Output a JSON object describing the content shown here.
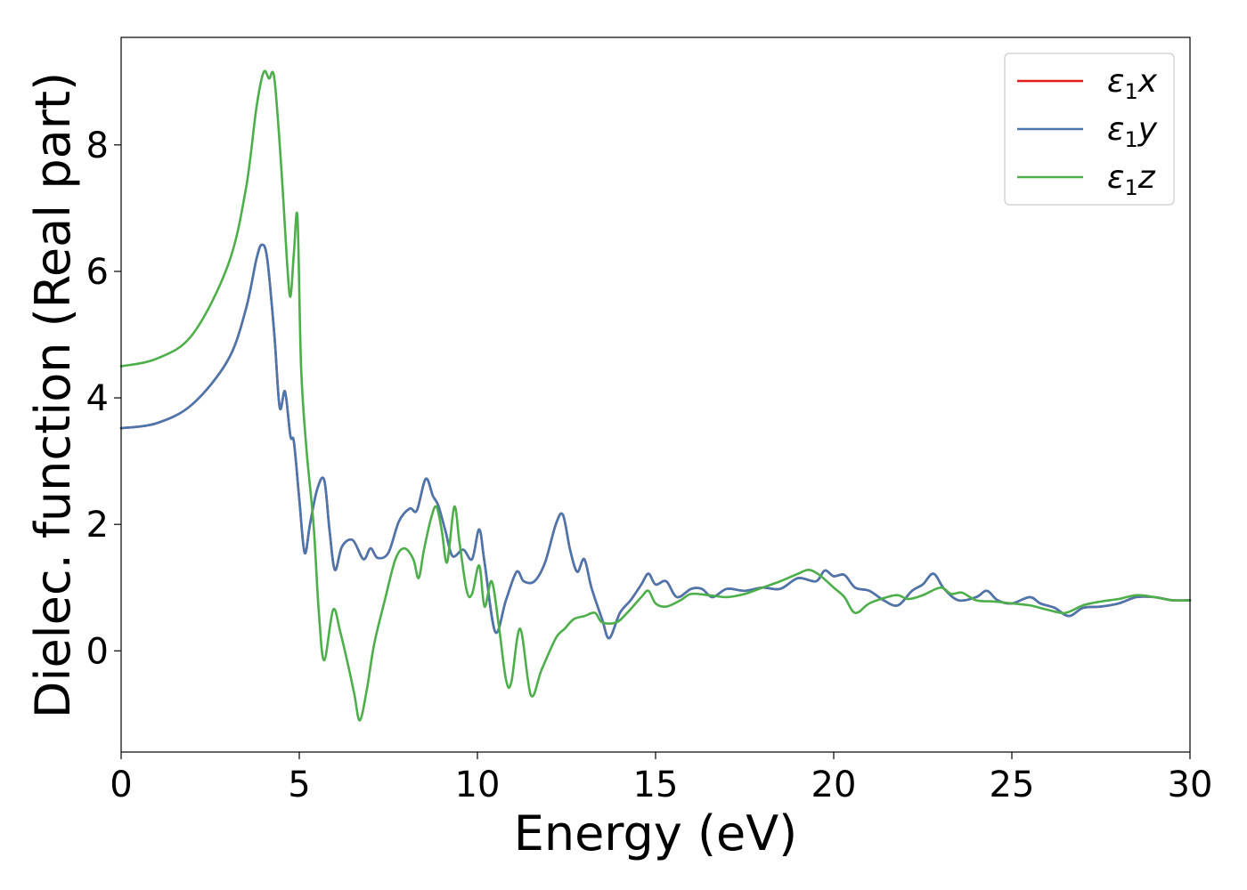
{
  "chart_data": {
    "type": "line",
    "xlabel": "Energy (eV)",
    "ylabel": "Dielec. function (Real part)",
    "xlim": [
      0,
      30
    ],
    "ylim": [
      -1.6,
      9.7
    ],
    "xticks": [
      0,
      5,
      10,
      15,
      20,
      25,
      30
    ],
    "yticks": [
      0,
      2,
      4,
      6,
      8
    ],
    "grid": false,
    "legend_position": "top-right",
    "series": [
      {
        "name": "ε1x",
        "legend": {
          "symbol": "ε",
          "sub": "1",
          "var": "x"
        },
        "color": "#e41a1c",
        "points": [
          [
            0,
            3.52
          ],
          [
            1,
            3.6
          ],
          [
            2,
            3.9
          ],
          [
            3,
            4.6
          ],
          [
            3.5,
            5.4
          ],
          [
            3.8,
            6.2
          ],
          [
            3.95,
            6.42
          ],
          [
            4.1,
            6.2
          ],
          [
            4.3,
            5.0
          ],
          [
            4.45,
            3.85
          ],
          [
            4.6,
            4.1
          ],
          [
            4.75,
            3.4
          ],
          [
            4.85,
            3.3
          ],
          [
            5.0,
            2.4
          ],
          [
            5.15,
            1.55
          ],
          [
            5.3,
            2.0
          ],
          [
            5.5,
            2.55
          ],
          [
            5.7,
            2.7
          ],
          [
            5.85,
            1.9
          ],
          [
            6.0,
            1.28
          ],
          [
            6.2,
            1.65
          ],
          [
            6.5,
            1.75
          ],
          [
            6.8,
            1.45
          ],
          [
            7.0,
            1.62
          ],
          [
            7.2,
            1.47
          ],
          [
            7.5,
            1.55
          ],
          [
            7.8,
            2.05
          ],
          [
            8.1,
            2.25
          ],
          [
            8.3,
            2.22
          ],
          [
            8.55,
            2.72
          ],
          [
            8.75,
            2.45
          ],
          [
            8.9,
            2.3
          ],
          [
            9.1,
            1.9
          ],
          [
            9.3,
            1.5
          ],
          [
            9.6,
            1.6
          ],
          [
            9.85,
            1.45
          ],
          [
            10.05,
            1.92
          ],
          [
            10.2,
            1.4
          ],
          [
            10.5,
            0.3
          ],
          [
            10.8,
            0.8
          ],
          [
            11.1,
            1.25
          ],
          [
            11.3,
            1.1
          ],
          [
            11.6,
            1.1
          ],
          [
            11.9,
            1.4
          ],
          [
            12.2,
            2.0
          ],
          [
            12.4,
            2.15
          ],
          [
            12.6,
            1.6
          ],
          [
            12.8,
            1.25
          ],
          [
            13.0,
            1.45
          ],
          [
            13.2,
            1.0
          ],
          [
            13.5,
            0.5
          ],
          [
            13.7,
            0.2
          ],
          [
            14.0,
            0.6
          ],
          [
            14.3,
            0.8
          ],
          [
            14.6,
            1.05
          ],
          [
            14.8,
            1.22
          ],
          [
            15.0,
            1.05
          ],
          [
            15.3,
            1.1
          ],
          [
            15.6,
            0.85
          ],
          [
            16.0,
            0.98
          ],
          [
            16.3,
            0.98
          ],
          [
            16.6,
            0.85
          ],
          [
            17.0,
            0.98
          ],
          [
            17.5,
            0.95
          ],
          [
            18.0,
            1.0
          ],
          [
            18.5,
            0.98
          ],
          [
            19.0,
            1.15
          ],
          [
            19.5,
            1.1
          ],
          [
            19.75,
            1.27
          ],
          [
            20.0,
            1.18
          ],
          [
            20.3,
            1.2
          ],
          [
            20.6,
            1.0
          ],
          [
            21.0,
            0.95
          ],
          [
            21.4,
            0.8
          ],
          [
            21.8,
            0.72
          ],
          [
            22.2,
            0.95
          ],
          [
            22.5,
            1.05
          ],
          [
            22.8,
            1.22
          ],
          [
            23.1,
            0.98
          ],
          [
            23.5,
            0.8
          ],
          [
            24.0,
            0.85
          ],
          [
            24.3,
            0.95
          ],
          [
            24.6,
            0.8
          ],
          [
            25.0,
            0.75
          ],
          [
            25.5,
            0.85
          ],
          [
            25.8,
            0.75
          ],
          [
            26.2,
            0.68
          ],
          [
            26.6,
            0.55
          ],
          [
            27.0,
            0.68
          ],
          [
            27.5,
            0.7
          ],
          [
            28.0,
            0.75
          ],
          [
            28.5,
            0.85
          ],
          [
            29.0,
            0.85
          ],
          [
            29.5,
            0.8
          ],
          [
            30.0,
            0.8
          ]
        ]
      },
      {
        "name": "ε1y",
        "legend": {
          "symbol": "ε",
          "sub": "1",
          "var": "y"
        },
        "color": "#4a76ae",
        "points": [
          [
            0,
            3.52
          ],
          [
            1,
            3.6
          ],
          [
            2,
            3.9
          ],
          [
            3,
            4.6
          ],
          [
            3.5,
            5.4
          ],
          [
            3.8,
            6.2
          ],
          [
            3.95,
            6.42
          ],
          [
            4.1,
            6.2
          ],
          [
            4.3,
            5.0
          ],
          [
            4.45,
            3.85
          ],
          [
            4.6,
            4.1
          ],
          [
            4.75,
            3.4
          ],
          [
            4.85,
            3.3
          ],
          [
            5.0,
            2.4
          ],
          [
            5.15,
            1.55
          ],
          [
            5.3,
            2.0
          ],
          [
            5.5,
            2.55
          ],
          [
            5.7,
            2.7
          ],
          [
            5.85,
            1.9
          ],
          [
            6.0,
            1.28
          ],
          [
            6.2,
            1.65
          ],
          [
            6.5,
            1.75
          ],
          [
            6.8,
            1.45
          ],
          [
            7.0,
            1.62
          ],
          [
            7.2,
            1.47
          ],
          [
            7.5,
            1.55
          ],
          [
            7.8,
            2.05
          ],
          [
            8.1,
            2.25
          ],
          [
            8.3,
            2.22
          ],
          [
            8.55,
            2.72
          ],
          [
            8.75,
            2.45
          ],
          [
            8.9,
            2.3
          ],
          [
            9.1,
            1.9
          ],
          [
            9.3,
            1.5
          ],
          [
            9.6,
            1.6
          ],
          [
            9.85,
            1.45
          ],
          [
            10.05,
            1.92
          ],
          [
            10.2,
            1.4
          ],
          [
            10.5,
            0.3
          ],
          [
            10.8,
            0.8
          ],
          [
            11.1,
            1.25
          ],
          [
            11.3,
            1.1
          ],
          [
            11.6,
            1.1
          ],
          [
            11.9,
            1.4
          ],
          [
            12.2,
            2.0
          ],
          [
            12.4,
            2.15
          ],
          [
            12.6,
            1.6
          ],
          [
            12.8,
            1.25
          ],
          [
            13.0,
            1.45
          ],
          [
            13.2,
            1.0
          ],
          [
            13.5,
            0.5
          ],
          [
            13.7,
            0.2
          ],
          [
            14.0,
            0.6
          ],
          [
            14.3,
            0.8
          ],
          [
            14.6,
            1.05
          ],
          [
            14.8,
            1.22
          ],
          [
            15.0,
            1.05
          ],
          [
            15.3,
            1.1
          ],
          [
            15.6,
            0.85
          ],
          [
            16.0,
            0.98
          ],
          [
            16.3,
            0.98
          ],
          [
            16.6,
            0.85
          ],
          [
            17.0,
            0.98
          ],
          [
            17.5,
            0.95
          ],
          [
            18.0,
            1.0
          ],
          [
            18.5,
            0.98
          ],
          [
            19.0,
            1.15
          ],
          [
            19.5,
            1.1
          ],
          [
            19.75,
            1.27
          ],
          [
            20.0,
            1.18
          ],
          [
            20.3,
            1.2
          ],
          [
            20.6,
            1.0
          ],
          [
            21.0,
            0.95
          ],
          [
            21.4,
            0.8
          ],
          [
            21.8,
            0.72
          ],
          [
            22.2,
            0.95
          ],
          [
            22.5,
            1.05
          ],
          [
            22.8,
            1.22
          ],
          [
            23.1,
            0.98
          ],
          [
            23.5,
            0.8
          ],
          [
            24.0,
            0.85
          ],
          [
            24.3,
            0.95
          ],
          [
            24.6,
            0.8
          ],
          [
            25.0,
            0.75
          ],
          [
            25.5,
            0.85
          ],
          [
            25.8,
            0.75
          ],
          [
            26.2,
            0.68
          ],
          [
            26.6,
            0.55
          ],
          [
            27.0,
            0.68
          ],
          [
            27.5,
            0.7
          ],
          [
            28.0,
            0.75
          ],
          [
            28.5,
            0.85
          ],
          [
            29.0,
            0.85
          ],
          [
            29.5,
            0.8
          ],
          [
            30.0,
            0.8
          ]
        ]
      },
      {
        "name": "ε1z",
        "legend": {
          "symbol": "ε",
          "sub": "1",
          "var": "z"
        },
        "color": "#4daf4a",
        "points": [
          [
            0,
            4.5
          ],
          [
            1,
            4.62
          ],
          [
            2,
            5.0
          ],
          [
            3,
            6.1
          ],
          [
            3.5,
            7.3
          ],
          [
            3.8,
            8.6
          ],
          [
            4.0,
            9.15
          ],
          [
            4.15,
            9.05
          ],
          [
            4.3,
            9.05
          ],
          [
            4.5,
            7.6
          ],
          [
            4.65,
            6.2
          ],
          [
            4.75,
            5.6
          ],
          [
            4.85,
            6.3
          ],
          [
            4.95,
            6.85
          ],
          [
            5.05,
            4.5
          ],
          [
            5.2,
            3.2
          ],
          [
            5.4,
            2.0
          ],
          [
            5.55,
            0.6
          ],
          [
            5.7,
            -0.15
          ],
          [
            5.95,
            0.65
          ],
          [
            6.15,
            0.3
          ],
          [
            6.4,
            -0.3
          ],
          [
            6.55,
            -0.7
          ],
          [
            6.7,
            -1.1
          ],
          [
            6.9,
            -0.6
          ],
          [
            7.1,
            0.1
          ],
          [
            7.4,
            0.8
          ],
          [
            7.7,
            1.45
          ],
          [
            7.95,
            1.62
          ],
          [
            8.2,
            1.45
          ],
          [
            8.35,
            1.15
          ],
          [
            8.5,
            1.6
          ],
          [
            8.7,
            2.1
          ],
          [
            8.85,
            2.28
          ],
          [
            9.0,
            1.9
          ],
          [
            9.15,
            1.4
          ],
          [
            9.35,
            2.28
          ],
          [
            9.5,
            1.7
          ],
          [
            9.7,
            0.95
          ],
          [
            9.85,
            0.9
          ],
          [
            10.05,
            1.35
          ],
          [
            10.2,
            0.7
          ],
          [
            10.4,
            1.1
          ],
          [
            10.6,
            0.4
          ],
          [
            10.8,
            -0.45
          ],
          [
            10.95,
            -0.5
          ],
          [
            11.2,
            0.35
          ],
          [
            11.5,
            -0.7
          ],
          [
            11.8,
            -0.3
          ],
          [
            12.2,
            0.2
          ],
          [
            12.45,
            0.35
          ],
          [
            12.7,
            0.5
          ],
          [
            13.0,
            0.55
          ],
          [
            13.3,
            0.6
          ],
          [
            13.5,
            0.45
          ],
          [
            13.9,
            0.45
          ],
          [
            14.2,
            0.6
          ],
          [
            14.6,
            0.85
          ],
          [
            14.8,
            0.95
          ],
          [
            15.0,
            0.75
          ],
          [
            15.3,
            0.7
          ],
          [
            15.7,
            0.8
          ],
          [
            16.0,
            0.9
          ],
          [
            16.5,
            0.88
          ],
          [
            17.0,
            0.85
          ],
          [
            17.5,
            0.9
          ],
          [
            18.0,
            1.0
          ],
          [
            18.5,
            1.1
          ],
          [
            19.0,
            1.22
          ],
          [
            19.3,
            1.28
          ],
          [
            19.6,
            1.2
          ],
          [
            20.0,
            1.0
          ],
          [
            20.3,
            0.85
          ],
          [
            20.6,
            0.6
          ],
          [
            21.0,
            0.75
          ],
          [
            21.5,
            0.85
          ],
          [
            21.8,
            0.88
          ],
          [
            22.1,
            0.82
          ],
          [
            22.5,
            0.88
          ],
          [
            23.0,
            1.0
          ],
          [
            23.3,
            0.9
          ],
          [
            23.6,
            0.92
          ],
          [
            24.0,
            0.8
          ],
          [
            24.5,
            0.78
          ],
          [
            25.0,
            0.75
          ],
          [
            25.5,
            0.72
          ],
          [
            26.0,
            0.65
          ],
          [
            26.5,
            0.6
          ],
          [
            27.0,
            0.72
          ],
          [
            27.5,
            0.78
          ],
          [
            28.0,
            0.82
          ],
          [
            28.5,
            0.88
          ],
          [
            29.0,
            0.85
          ],
          [
            29.5,
            0.8
          ],
          [
            30.0,
            0.8
          ]
        ]
      }
    ]
  }
}
